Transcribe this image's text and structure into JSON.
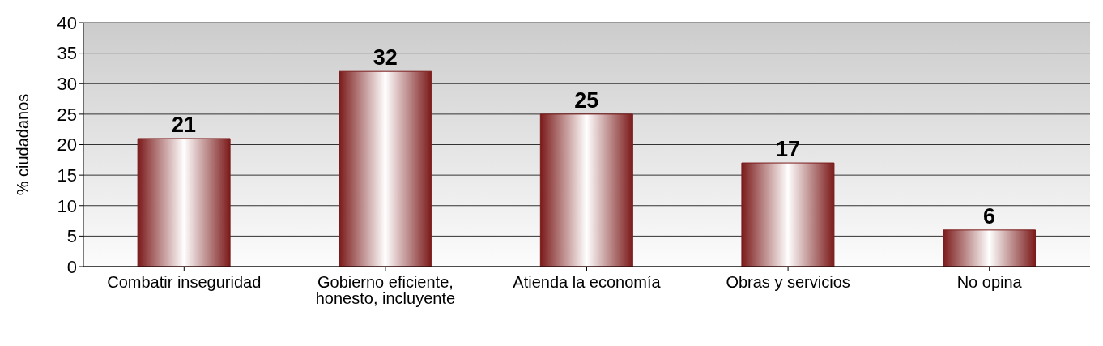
{
  "chart_data": {
    "type": "bar",
    "ylabel": "% ciudadanos",
    "categories": [
      "Combatir inseguridad",
      "Gobierno eficiente, honesto, incluyente",
      "Atienda la economía",
      "Obras y servicios",
      "No opina"
    ],
    "values": [
      21,
      32,
      25,
      17,
      6
    ],
    "color": "#7b1a1a",
    "ylim": [
      0,
      40
    ],
    "yticks": [
      0,
      5,
      10,
      15,
      20,
      25,
      30,
      35,
      40
    ],
    "grid": "y",
    "data_labels": true
  }
}
